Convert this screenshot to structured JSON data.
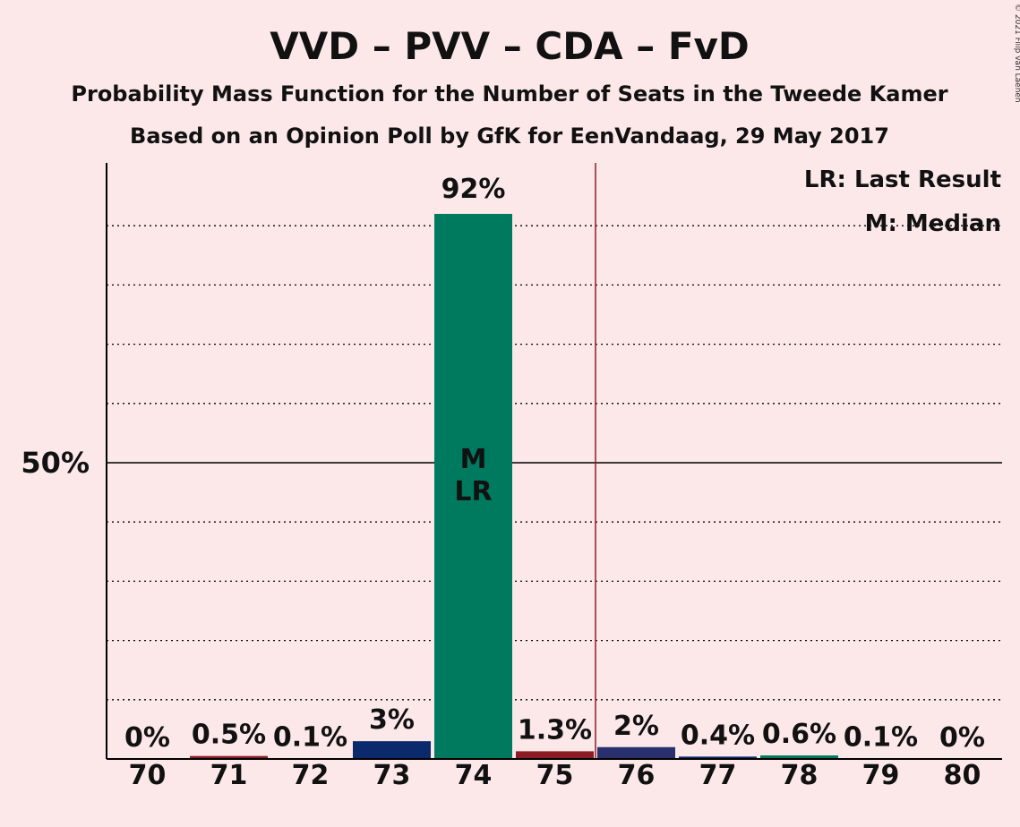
{
  "chart_data": {
    "type": "bar",
    "title": "VVD – PVV – CDA – FvD",
    "subtitle": "Probability Mass Function for the Number of Seats in the Tweede Kamer",
    "subtitle2": "Based on an Opinion Poll by GfK for EenVandaag, 29 May 2017",
    "copyright": "© 2021 Filip van Laenen",
    "categories": [
      "70",
      "71",
      "72",
      "73",
      "74",
      "75",
      "76",
      "77",
      "78",
      "79",
      "80"
    ],
    "values": [
      0,
      0.5,
      0.1,
      3,
      92,
      1.3,
      2,
      0.4,
      0.6,
      0.1,
      0
    ],
    "labels": [
      "0%",
      "0.5%",
      "0.1%",
      "3%",
      "92%",
      "1.3%",
      "2%",
      "0.4%",
      "0.6%",
      "0.1%",
      "0%"
    ],
    "colors": [
      "#0a2a6b",
      "#8b1c24",
      "#0a2a6b",
      "#0a2a6b",
      "#007a5e",
      "#8b1c24",
      "#2a2f6e",
      "#0a2a6b",
      "#007a5e",
      "#0a2a6b",
      "#0a2a6b"
    ],
    "ylim": [
      0,
      100
    ],
    "ytick_label": "50%",
    "ytick_value": 50,
    "gridlines": [
      10,
      20,
      30,
      40,
      60,
      70,
      80,
      90
    ],
    "majority_line": 75.5,
    "median_seat": "74",
    "median_marker": "M",
    "last_result_seat": "74",
    "last_result_marker": "LR",
    "legend": [
      "LR: Last Result",
      "M: Median"
    ],
    "legend_position": "top-right"
  }
}
